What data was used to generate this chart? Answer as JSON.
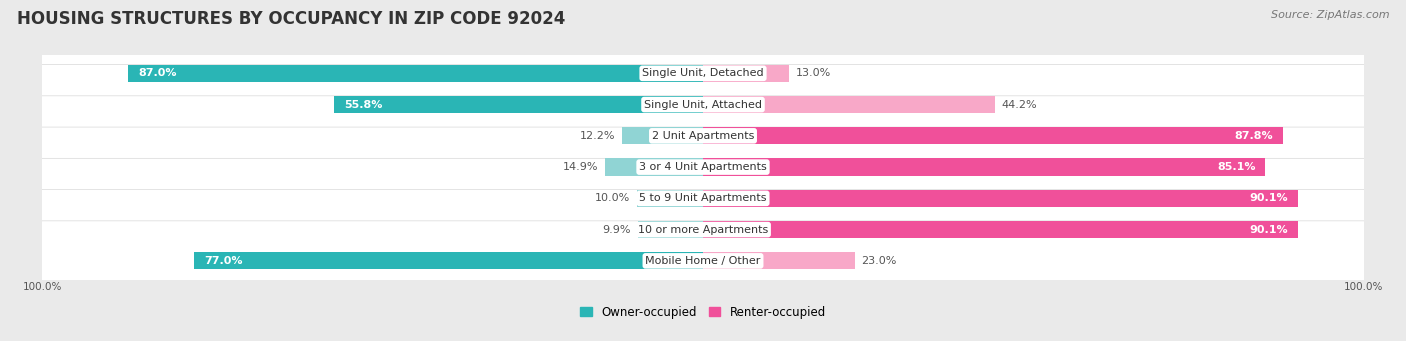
{
  "title": "HOUSING STRUCTURES BY OCCUPANCY IN ZIP CODE 92024",
  "source": "Source: ZipAtlas.com",
  "categories": [
    "Single Unit, Detached",
    "Single Unit, Attached",
    "2 Unit Apartments",
    "3 or 4 Unit Apartments",
    "5 to 9 Unit Apartments",
    "10 or more Apartments",
    "Mobile Home / Other"
  ],
  "owner_pct": [
    87.0,
    55.8,
    12.2,
    14.9,
    10.0,
    9.9,
    77.0
  ],
  "renter_pct": [
    13.0,
    44.2,
    87.8,
    85.1,
    90.1,
    90.1,
    23.0
  ],
  "owner_color_solid": "#2ab5b5",
  "owner_color_light": "#90d4d4",
  "renter_color_solid": "#f0509a",
  "renter_color_light": "#f8a8c8",
  "bg_color": "#eaeaea",
  "row_bg_color": "#f5f5f5",
  "row_bg_outline": "#d8d8d8",
  "title_fontsize": 12,
  "source_fontsize": 8,
  "label_fontsize": 8,
  "pct_fontsize": 8,
  "legend_fontsize": 8.5,
  "axis_label_fontsize": 7.5
}
